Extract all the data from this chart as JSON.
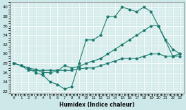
{
  "xlabel": "Humidex (Indice chaleur)",
  "xlim": [
    -0.5,
    23.5
  ],
  "ylim": [
    21.5,
    41
  ],
  "yticks": [
    22,
    24,
    26,
    28,
    30,
    32,
    34,
    36,
    38,
    40
  ],
  "xticks": [
    0,
    1,
    2,
    3,
    4,
    5,
    6,
    7,
    8,
    9,
    10,
    11,
    12,
    13,
    14,
    15,
    16,
    17,
    18,
    19,
    20,
    21,
    22,
    23
  ],
  "bg_color": "#cce8e8",
  "line_color": "#1a7a6e",
  "grid_color": "#ffffff",
  "line1_x": [
    0,
    1,
    2,
    3,
    4,
    5,
    6,
    7,
    8,
    9,
    10,
    11,
    12,
    13,
    14,
    15,
    16,
    17,
    18,
    19,
    20,
    21,
    22,
    23
  ],
  "line1_y": [
    28,
    27.5,
    27,
    26,
    25.5,
    24,
    23.5,
    22.5,
    23,
    28,
    33,
    33,
    34,
    38,
    38,
    40,
    39.5,
    39,
    40,
    39,
    36,
    33,
    31,
    30
  ],
  "line2_x": [
    0,
    2,
    3,
    4,
    5,
    6,
    7,
    8,
    9,
    10,
    11,
    12,
    13,
    14,
    15,
    16,
    17,
    18,
    19,
    20,
    22,
    23
  ],
  "line2_y": [
    28,
    27,
    26.7,
    26,
    26,
    26.3,
    27.5,
    27,
    27.3,
    28,
    28.5,
    29,
    30,
    31,
    32,
    33,
    34,
    35,
    36,
    36,
    29.5,
    30
  ],
  "line3_x": [
    0,
    1,
    2,
    3,
    4,
    5,
    6,
    7,
    8,
    9,
    10,
    11,
    12,
    13,
    14,
    15,
    16,
    17,
    18,
    19,
    20,
    21,
    22,
    23
  ],
  "line3_y": [
    28,
    27.5,
    26.5,
    26.5,
    26.5,
    26.5,
    26.5,
    26.5,
    26.5,
    26.8,
    27,
    27,
    27.5,
    28,
    28.5,
    29,
    29,
    29,
    29.5,
    30,
    30,
    29.5,
    29.5,
    29.5
  ]
}
